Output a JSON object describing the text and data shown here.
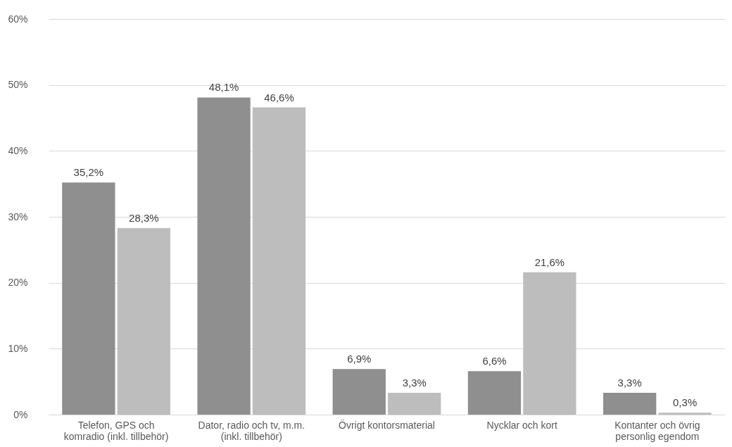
{
  "chart_data": {
    "type": "bar",
    "categories": [
      "Telefon, GPS och komradio (inkl. tillbehör)",
      "Dator, radio och tv, m.m. (inkl. tillbehör)",
      "Övrigt kontorsmaterial",
      "Nycklar och kort",
      "Kontanter och övrig personlig egendom"
    ],
    "series": [
      {
        "color": "#8f8f8f",
        "values": [
          35.2,
          48.1,
          6.9,
          6.6,
          3.3
        ],
        "value_labels": [
          "35,2%",
          "48,1%",
          "6,9%",
          "6,6%",
          "3,3%"
        ]
      },
      {
        "color": "#bdbdbd",
        "values": [
          28.3,
          46.6,
          3.3,
          21.6,
          0.3
        ],
        "value_labels": [
          "28,3%",
          "46,6%",
          "3,3%",
          "21,6%",
          "0,3%"
        ]
      }
    ],
    "ylim": [
      0,
      60
    ],
    "yticks": [
      {
        "value": 0,
        "label": "0%"
      },
      {
        "value": 10,
        "label": "10%"
      },
      {
        "value": 20,
        "label": "20%"
      },
      {
        "value": 30,
        "label": "30%"
      },
      {
        "value": 40,
        "label": "40%"
      },
      {
        "value": 50,
        "label": "50%"
      },
      {
        "value": 60,
        "label": "60%"
      }
    ],
    "grid": "y",
    "legend": false
  }
}
